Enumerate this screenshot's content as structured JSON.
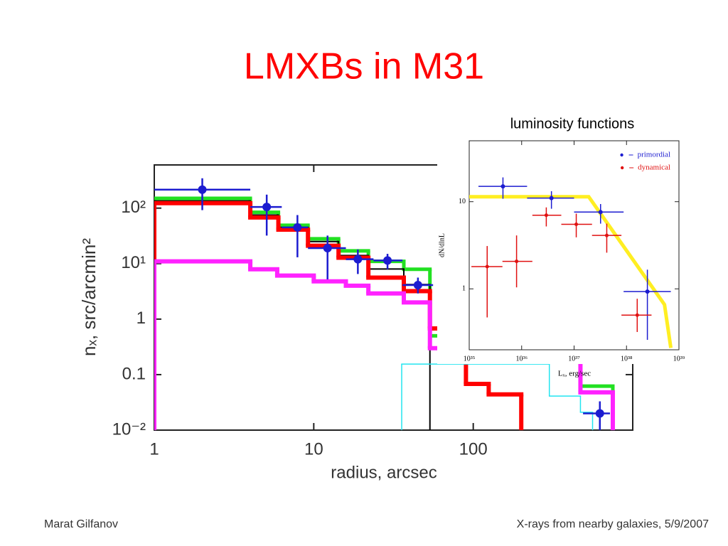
{
  "title": "LMXBs in M31",
  "footer": {
    "left": "Marat Gilfanov",
    "right": "X-rays from nearby galaxies, 5/9/2007"
  },
  "chart_data": [
    {
      "type": "line",
      "xlabel": "radius, arcsec",
      "ylabel": "nₓ, src/arcmin²",
      "xscale": "log",
      "yscale": "log",
      "xlim": [
        1,
        1000
      ],
      "ylim": [
        0.01,
        600
      ],
      "xticks": [
        1,
        10,
        100
      ],
      "yticks": [
        {
          "value": 0.01,
          "label": "10⁻²"
        },
        0.1,
        1,
        {
          "value": 10,
          "label": "10¹"
        },
        {
          "value": 100,
          "label": "10²"
        }
      ],
      "series": [
        {
          "style": "steps",
          "color": "#22e022",
          "linewidth": 5,
          "edges": [
            1,
            4,
            6,
            9.2,
            14.3,
            22,
            36.7,
            53.5,
            470,
            750
          ],
          "values": [
            150,
            84,
            49,
            28,
            17,
            11,
            7.9,
            0.5,
            0.062
          ]
        },
        {
          "style": "steps",
          "color": "#000000",
          "linewidth": 2,
          "edges": [
            1,
            4,
            6,
            9.2,
            14.3,
            22,
            36.7,
            53.5
          ],
          "values": [
            135,
            75,
            45,
            25,
            14,
            8,
            4.2
          ]
        },
        {
          "style": "steps",
          "color": "#ff0000",
          "linewidth": 6,
          "edges": [
            1,
            4,
            6,
            9.2,
            14.3,
            22,
            36.7,
            53.5,
            90,
            125,
            200
          ],
          "values": [
            123,
            68,
            41,
            21,
            12.8,
            5.6,
            3.2,
            0.68,
            0.068,
            0.044
          ]
        },
        {
          "style": "steps",
          "color": "#ff22ff",
          "linewidth": 6,
          "edges": [
            1,
            4,
            5.9,
            10,
            15.9,
            22,
            36.7,
            53.5,
            470,
            750
          ],
          "values": [
            11,
            7.9,
            6.1,
            4.8,
            4,
            2.9,
            2,
            0.3,
            0.048
          ]
        },
        {
          "style": "steps",
          "color": "#22e5f0",
          "linewidth": 1.5,
          "edges": [
            35.6,
            300,
            470,
            560
          ],
          "values": [
            0.155,
            0.041,
            0.021
          ]
        },
        {
          "style": "errorbar",
          "color": "#1c1cd0",
          "marker_size": 6,
          "x": [
            2.0,
            5.07,
            7.9,
            12.2,
            18.9,
            29,
            45,
            622
          ],
          "values": [
            215,
            105,
            45,
            19,
            12,
            11.4,
            4.1,
            0.02
          ],
          "xerr_low": [
            1,
            4,
            6.3,
            9.2,
            15.9,
            23.7,
            36,
            488
          ],
          "xerr_high": [
            4,
            6.3,
            9.2,
            15.9,
            23.7,
            36,
            56,
            720
          ],
          "yerr_low": [
            92,
            32,
            13,
            5.2,
            6.5,
            7.9,
            2.9,
            0.01
          ],
          "yerr_high": [
            345,
            175,
            75,
            32,
            18,
            15,
            5.6,
            0.033
          ]
        }
      ]
    },
    {
      "type": "line",
      "title": "luminosity functions",
      "xlabel": "Lₓ, erg/sec",
      "ylabel": "dN/dlnL",
      "xscale": "log",
      "yscale": "log",
      "xlim": [
        1e+35,
        1e+39
      ],
      "ylim": [
        0.2,
        50
      ],
      "xticks": [
        {
          "value": 1e+35,
          "label": "10³⁵"
        },
        {
          "value": 1e+36,
          "label": "10³⁶"
        },
        {
          "value": 1e+37,
          "label": "10³⁷"
        },
        {
          "value": 1e+38,
          "label": "10³⁸"
        },
        {
          "value": 1e+39,
          "label": "10³⁹"
        }
      ],
      "yticks": [
        1,
        10
      ],
      "legend": "top-right",
      "series": [
        {
          "style": "line",
          "color": "#ffee22",
          "linewidth": 5,
          "x": [
            1e+35,
            1.9e+37,
            5.3e+38,
            7e+38
          ],
          "values": [
            11.4,
            11.4,
            0.66,
            0.21
          ]
        },
        {
          "name": "primordial",
          "style": "errorbar",
          "color": "#1c1cd0",
          "marker_size": 3,
          "x": [
            4.4e+35,
            3.7e+36,
            3.2e+37,
            2.5e+38
          ],
          "values": [
            15,
            11,
            7.6,
            0.93
          ],
          "xerr_low": [
            1.5e+35,
            1.27e+36,
            1e+37,
            8.8e+37
          ],
          "xerr_high": [
            1.27e+36,
            1e+37,
            8.8e+37,
            7e+38
          ],
          "yerr_low": [
            10.8,
            8.3,
            5.6,
            0.26
          ],
          "yerr_high": [
            19,
            13.2,
            9.4,
            1.66
          ]
        },
        {
          "name": "dynamical",
          "style": "errorbar",
          "color": "#e01010",
          "marker_size": 2.5,
          "x": [
            2.2e+35,
            8e+35,
            2.95e+36,
            1.1e+37,
            4.2e+37,
            1.6e+38
          ],
          "values": [
            1.8,
            2.07,
            7,
            5.5,
            4.1,
            0.5
          ],
          "xerr_low": [
            1.1e+35,
            4.3e+35,
            1.6e+36,
            5.7e+36,
            2.2e+37,
            8e+37
          ],
          "xerr_high": [
            4.3e+35,
            1.6e+36,
            5.7e+36,
            2.2e+37,
            8e+37,
            3e+38
          ],
          "yerr_low": [
            0.47,
            1.04,
            5.2,
            3.9,
            2.6,
            0.32
          ],
          "yerr_high": [
            3.1,
            4.1,
            8.6,
            7.3,
            5.6,
            0.77
          ]
        }
      ]
    }
  ]
}
